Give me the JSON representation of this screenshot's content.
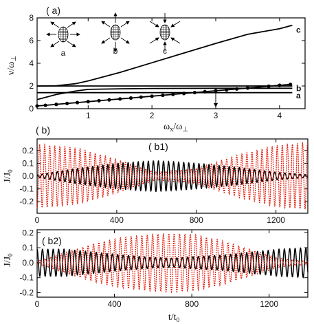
{
  "chart_data": [
    {
      "panel": "( a)",
      "type": "line",
      "xlabel": "ω_x/ω_⊥",
      "ylabel": "ν/ω_⊥",
      "xlim": [
        0.2,
        4.4
      ],
      "ylim": [
        0,
        8
      ],
      "xticks": [
        1,
        2,
        3,
        4
      ],
      "yticks": [
        0,
        2,
        4,
        6,
        8
      ],
      "insets": [
        {
          "label": "a",
          "arrows": "horizontal-out"
        },
        {
          "label": "b",
          "arrows": "vertical-out"
        },
        {
          "label": "c",
          "arrows": "diagonal-in"
        }
      ],
      "marker": {
        "x": 3.0
      },
      "series": [
        {
          "name": "c",
          "x": [
            0.2,
            0.5,
            0.8,
            1.0,
            1.5,
            2.0,
            2.5,
            3.0,
            3.5,
            4.0,
            4.2
          ],
          "y": [
            2.0,
            2.02,
            2.2,
            2.45,
            3.2,
            4.05,
            4.9,
            5.75,
            6.55,
            7.05,
            7.35
          ]
        },
        {
          "name": "b",
          "x": [
            0.2,
            0.5,
            0.8,
            1.0,
            1.5,
            2.0,
            3.0,
            4.2
          ],
          "y": [
            0.8,
            1.25,
            1.55,
            1.7,
            1.75,
            1.78,
            1.8,
            1.8
          ]
        },
        {
          "name": "a",
          "x": [
            0.2,
            4.2
          ],
          "y": [
            1.41,
            1.41
          ]
        },
        {
          "name": "",
          "x": [
            0.2,
            4.2
          ],
          "y": [
            2.0,
            2.0
          ]
        },
        {
          "name": "",
          "marker": "circle",
          "x": [
            0.2,
            0.33,
            0.5,
            0.67,
            0.83,
            1.0,
            1.17,
            1.33,
            1.5,
            1.67,
            1.83,
            2.0,
            2.17,
            2.33,
            2.5,
            2.67,
            2.83,
            3.0,
            3.17,
            3.33,
            3.5,
            3.67,
            3.83,
            4.0,
            4.17
          ],
          "y": [
            0.24,
            0.3,
            0.38,
            0.46,
            0.54,
            0.62,
            0.7,
            0.78,
            0.86,
            0.94,
            1.02,
            1.1,
            1.18,
            1.26,
            1.34,
            1.42,
            1.5,
            1.58,
            1.66,
            1.74,
            1.82,
            1.9,
            1.98,
            2.06,
            2.14
          ]
        }
      ]
    },
    {
      "panel": "( b)",
      "subpanel": "( b1)",
      "type": "line",
      "xlabel": "",
      "ylabel": "J/J_0",
      "xlim": [
        0,
        1360
      ],
      "ylim": [
        -0.29,
        0.29
      ],
      "xticks": [
        0,
        400,
        800,
        1200
      ],
      "yticks": [
        0.2,
        0.1,
        0.0,
        -0.1,
        -0.2
      ],
      "period": 25.4,
      "series": [
        {
          "name": "",
          "color": "#000000",
          "style": "solid",
          "envelope_t": [
            0,
            200,
            400,
            600,
            800,
            1000,
            1200,
            1360
          ],
          "envelope_amp": [
            0.01,
            0.06,
            0.1,
            0.12,
            0.1,
            0.07,
            0.03,
            0.01
          ]
        },
        {
          "name": "",
          "color": "#e02010",
          "style": "dotted",
          "envelope_t": [
            0,
            200,
            400,
            600,
            800,
            1000,
            1200,
            1360
          ],
          "envelope_amp": [
            0.25,
            0.22,
            0.13,
            0.03,
            0.06,
            0.16,
            0.24,
            0.26
          ]
        }
      ]
    },
    {
      "panel": "",
      "subpanel": "( b2)",
      "type": "line",
      "xlabel": "t/t_0",
      "ylabel": "J/J_0",
      "xlim": [
        0,
        1400
      ],
      "ylim": [
        -0.23,
        0.22
      ],
      "xticks": [
        0,
        400,
        800,
        1200
      ],
      "yticks": [
        0.2,
        0.1,
        0.0,
        -0.1,
        -0.2
      ],
      "period": 27.8,
      "series": [
        {
          "name": "",
          "color": "#000000",
          "style": "solid",
          "envelope_t": [
            0,
            150,
            300,
            450,
            600,
            700,
            800,
            950,
            1100,
            1250,
            1400
          ],
          "envelope_amp": [
            0.09,
            0.09,
            0.07,
            0.05,
            0.035,
            0.03,
            0.04,
            0.05,
            0.07,
            0.09,
            0.1
          ]
        },
        {
          "name": "",
          "color": "#e02010",
          "style": "dotted",
          "envelope_t": [
            0,
            150,
            300,
            450,
            600,
            700,
            800,
            950,
            1100,
            1250,
            1400
          ],
          "envelope_amp": [
            0.01,
            0.07,
            0.13,
            0.17,
            0.19,
            0.195,
            0.19,
            0.15,
            0.09,
            0.03,
            0.01
          ]
        }
      ]
    }
  ]
}
